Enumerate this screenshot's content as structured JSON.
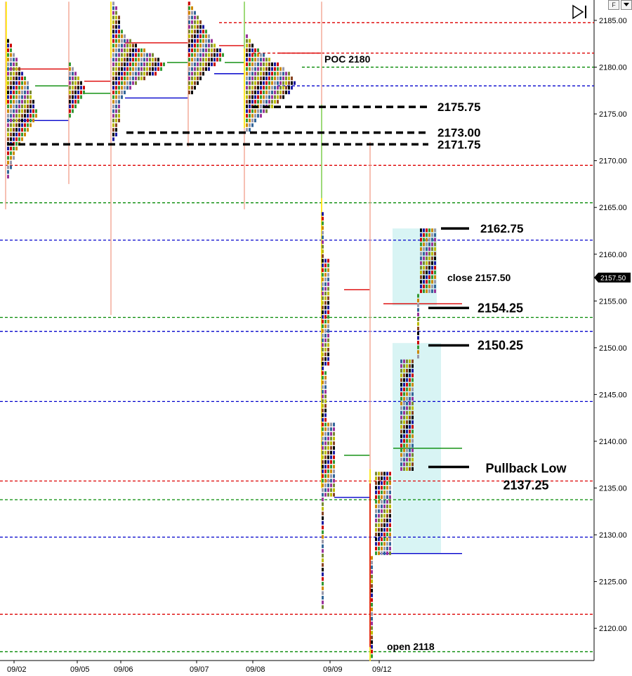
{
  "chart_data": {
    "type": "market-profile",
    "y_axis": {
      "min": 2116.5,
      "max": 2186.5,
      "ticks": [
        "2185.00",
        "2180.00",
        "2175.00",
        "2170.00",
        "2165.00",
        "2160.00",
        "2155.00",
        "2150.00",
        "2145.00",
        "2140.00",
        "2135.00",
        "2130.00",
        "2125.00",
        "2120.00"
      ]
    },
    "last_price_label": "2157.50",
    "sessions": [
      {
        "date": "09/02",
        "low": 2172,
        "high": 2183,
        "poc": 2178
      },
      {
        "date": "09/05",
        "low": 2176.5,
        "high": 2180.5,
        "poc": 2178
      },
      {
        "date": "09/06",
        "low": 2173,
        "high": 2187,
        "poc": 2180.5
      },
      {
        "date": "09/07",
        "low": 2177,
        "high": 2187,
        "poc": 2181.5
      },
      {
        "date": "09/08",
        "low": 2176,
        "high": 2183.5,
        "poc": 2180
      },
      {
        "date": "09/09",
        "low": 2122.5,
        "high": 2164.5,
        "poc": 2138.5
      },
      {
        "date": "09/12",
        "low": 2117.5,
        "high": 2162.75,
        "poc": 2139.25
      }
    ],
    "levels": [
      {
        "price": 2184.75,
        "color": "#dd0000",
        "style": "dashed"
      },
      {
        "price": 2181.5,
        "color": "#dd0000",
        "style": "dashed"
      },
      {
        "price": 2180,
        "color": "#008800",
        "style": "dashed"
      },
      {
        "price": 2178,
        "color": "#0000cc",
        "style": "dashed"
      },
      {
        "price": 2169.5,
        "color": "#dd0000",
        "style": "dashed"
      },
      {
        "price": 2165.5,
        "color": "#008800",
        "style": "dashed"
      },
      {
        "price": 2161.5,
        "color": "#0000cc",
        "style": "dashed"
      },
      {
        "price": 2153.25,
        "color": "#008800",
        "style": "dashed"
      },
      {
        "price": 2151.75,
        "color": "#0000cc",
        "style": "dashed"
      },
      {
        "price": 2144.25,
        "color": "#0000cc",
        "style": "dashed"
      },
      {
        "price": 2135.75,
        "color": "#dd0000",
        "style": "dashed"
      },
      {
        "price": 2133.75,
        "color": "#008800",
        "style": "dashed"
      },
      {
        "price": 2129.75,
        "color": "#0000cc",
        "style": "dashed"
      },
      {
        "price": 2121.5,
        "color": "#dd0000",
        "style": "dashed"
      },
      {
        "price": 2117.5,
        "color": "#008800",
        "style": "dashed"
      }
    ],
    "annotations": [
      {
        "text": "POC 2180",
        "price": 2180.5
      },
      {
        "text": "2175.75",
        "price": 2175.75
      },
      {
        "text": "2173.00",
        "price": 2173.0
      },
      {
        "text": "2171.75",
        "price": 2171.75
      },
      {
        "text": "2162.75",
        "price": 2162.75
      },
      {
        "text": "close 2157.50",
        "price": 2157.5
      },
      {
        "text": "2154.25",
        "price": 2154.25
      },
      {
        "text": "2150.25",
        "price": 2150.25
      },
      {
        "text": "Pullback Low",
        "price": 2137.25
      },
      {
        "text": "2137.25",
        "price": 2137.25
      },
      {
        "text": "open 2118",
        "price": 2118
      }
    ],
    "value_areas": [
      {
        "low": 2128,
        "high": 2150.5
      },
      {
        "low": 2154.5,
        "high": 2162.75
      }
    ]
  },
  "ui": {
    "corner_f": "F"
  }
}
